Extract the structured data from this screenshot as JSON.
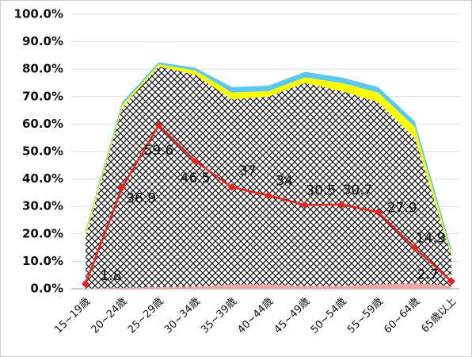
{
  "chart_data": {
    "type": "area",
    "categories": [
      "15~19歳",
      "20~24歳",
      "25~29歳",
      "30~34歳",
      "35~39歳",
      "40~44歳",
      "45~49歳",
      "50~54歳",
      "55~59歳",
      "60~64歳",
      "65歳以上"
    ],
    "ylim": [
      0,
      100
    ],
    "yticks": [
      {
        "value": 0,
        "label": "0.0%"
      },
      {
        "value": 10,
        "label": "10.0%"
      },
      {
        "value": 20,
        "label": "20.0%"
      },
      {
        "value": 30,
        "label": "30.0%"
      },
      {
        "value": 40,
        "label": "40.0%"
      },
      {
        "value": 50,
        "label": "50.0%"
      },
      {
        "value": 60,
        "label": "60.0%"
      },
      {
        "value": 70,
        "label": "70.0%"
      },
      {
        "value": 80,
        "label": "80.0%"
      },
      {
        "value": 90,
        "label": "90.0%"
      },
      {
        "value": 100,
        "label": "100.0%"
      }
    ],
    "grid": true,
    "series": [
      {
        "type": "area",
        "color": "#f4a3a3",
        "values": [
          0.1,
          0.3,
          0.5,
          0.8,
          1.5,
          1.5,
          1.0,
          1.0,
          1.5,
          2.0,
          1.0
        ]
      },
      {
        "type": "area",
        "color": "crosshatch",
        "values": [
          18.9,
          65.7,
          80.5,
          77.2,
          67.5,
          68.5,
          74.0,
          71.0,
          66.5,
          53.0,
          11.0
        ]
      },
      {
        "type": "area",
        "color": "#ffff00",
        "values": [
          1.5,
          1.0,
          0.8,
          1.5,
          2.5,
          2.0,
          2.0,
          3.0,
          3.5,
          4.0,
          1.0
        ]
      },
      {
        "type": "area",
        "color": "#5bc8f0",
        "values": [
          0.7,
          1.0,
          0.7,
          1.0,
          2.0,
          2.0,
          2.0,
          2.0,
          2.0,
          2.0,
          1.5
        ]
      },
      {
        "type": "line",
        "color": "#e8231e",
        "values": [
          1.8,
          36.9,
          59.6,
          46.5,
          37.0,
          34.0,
          30.5,
          30.7,
          27.9,
          14.9,
          2.7
        ]
      }
    ]
  }
}
